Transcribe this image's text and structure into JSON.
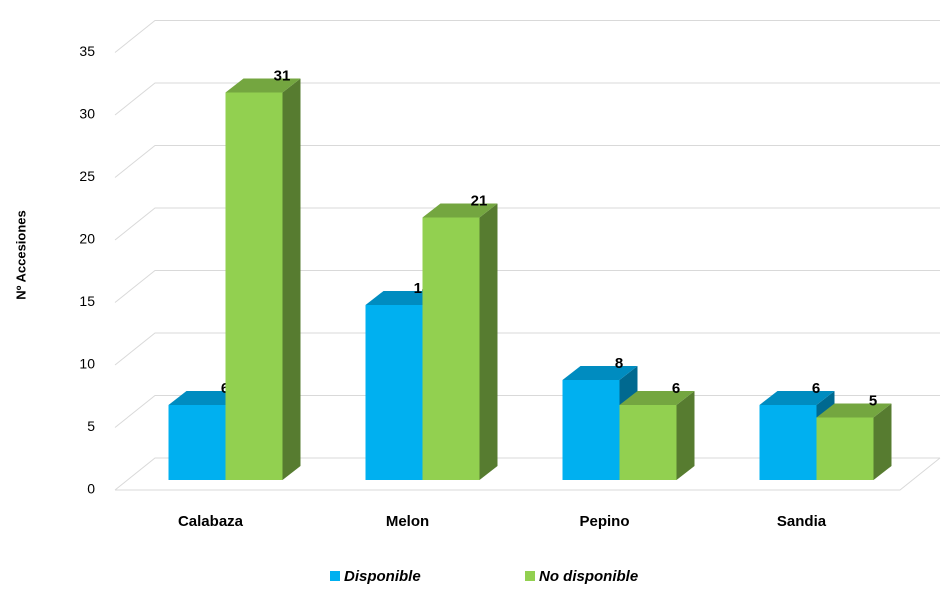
{
  "chart_data": {
    "type": "bar3d",
    "y_label": "Nº Accesiones",
    "categories": [
      "Calabaza",
      "Melon",
      "Pepino",
      "Sandia"
    ],
    "series": [
      {
        "name": "Disponible",
        "color": "#00b0f0",
        "values": [
          6,
          14,
          8,
          6
        ]
      },
      {
        "name": "No disponible",
        "color": "#92d050",
        "values": [
          31,
          21,
          6,
          5
        ]
      }
    ],
    "ylim": [
      0,
      35
    ],
    "yticks": [
      0,
      5,
      10,
      15,
      20,
      25,
      30,
      35
    ],
    "grid": true,
    "legend": "bottom"
  }
}
